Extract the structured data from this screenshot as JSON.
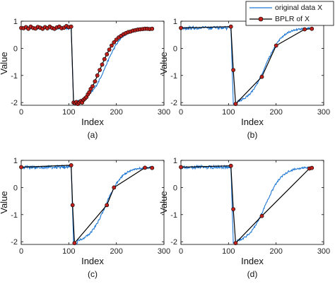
{
  "chart_data": [
    {
      "panel_caption": "(a)",
      "type": "line",
      "xlabel": "Index",
      "ylabel": "Value",
      "xlim": [
        0,
        300
      ],
      "ylim": [
        -2.1,
        1.0
      ],
      "xticks": [
        "0",
        "100",
        "200",
        "300"
      ],
      "yticks": [
        "-2",
        "-1",
        "0",
        "1"
      ],
      "series": [
        {
          "name": "original data X",
          "color": "#1f77d4",
          "points": "original"
        },
        {
          "name": "BPLR of X",
          "color": "#000000",
          "marker": "circle",
          "marker_fill": "#c0201c",
          "x": [
            0,
            5,
            10,
            15,
            20,
            25,
            30,
            35,
            40,
            45,
            50,
            55,
            60,
            65,
            70,
            75,
            80,
            85,
            90,
            95,
            100,
            105,
            110,
            113,
            116,
            119,
            122,
            125,
            128,
            131,
            134,
            137,
            140,
            143,
            146,
            150,
            155,
            160,
            165,
            170,
            175,
            180,
            185,
            190,
            195,
            200,
            205,
            210,
            215,
            220,
            225,
            230,
            235,
            240,
            245,
            250,
            255,
            260,
            265,
            270,
            275
          ],
          "y": [
            0.75,
            0.74,
            0.78,
            0.72,
            0.8,
            0.75,
            0.73,
            0.79,
            0.76,
            0.72,
            0.78,
            0.74,
            0.8,
            0.75,
            0.72,
            0.77,
            0.8,
            0.74,
            0.76,
            0.82,
            0.78,
            0.8,
            -2.0,
            -2.02,
            -1.98,
            -2.05,
            -2.0,
            -1.95,
            -2.0,
            -1.9,
            -1.85,
            -1.8,
            -1.7,
            -1.62,
            -1.5,
            -1.4,
            -1.22,
            -1.0,
            -0.8,
            -0.6,
            -0.4,
            -0.22,
            -0.05,
            0.1,
            0.22,
            0.32,
            0.4,
            0.46,
            0.52,
            0.56,
            0.6,
            0.62,
            0.65,
            0.67,
            0.69,
            0.7,
            0.71,
            0.72,
            0.72,
            0.71,
            0.72
          ]
        }
      ]
    },
    {
      "panel_caption": "(b)",
      "type": "line",
      "xlabel": "Index",
      "ylabel": "Value",
      "xlim": [
        0,
        300
      ],
      "ylim": [
        -2.1,
        1.0
      ],
      "xticks": [
        "0",
        "100",
        "200",
        "300"
      ],
      "yticks": [
        "-2",
        "-1",
        "0",
        "1"
      ],
      "series": [
        {
          "name": "original data X",
          "color": "#1f77d4",
          "points": "original"
        },
        {
          "name": "BPLR of X",
          "color": "#000000",
          "marker": "circle",
          "marker_fill": "#c0201c",
          "x": [
            0,
            105,
            110,
            115,
            170,
            200,
            260,
            275
          ],
          "y": [
            0.75,
            0.8,
            -0.8,
            -2.05,
            -1.05,
            0.1,
            0.7,
            0.72
          ]
        }
      ]
    },
    {
      "panel_caption": "(c)",
      "type": "line",
      "xlabel": "Index",
      "ylabel": "Value",
      "xlim": [
        0,
        300
      ],
      "ylim": [
        -2.1,
        1.0
      ],
      "xticks": [
        "0",
        "100",
        "200",
        "300"
      ],
      "yticks": [
        "-2",
        "-1",
        "0",
        "1"
      ],
      "series": [
        {
          "name": "original data X",
          "color": "#1f77d4",
          "points": "original"
        },
        {
          "name": "BPLR of X",
          "color": "#000000",
          "marker": "circle",
          "marker_fill": "#c0201c",
          "x": [
            0,
            105,
            108,
            112,
            180,
            195,
            260,
            275
          ],
          "y": [
            0.75,
            0.82,
            -0.65,
            -2.05,
            -0.65,
            0.0,
            0.73,
            0.72
          ]
        }
      ]
    },
    {
      "panel_caption": "(d)",
      "type": "line",
      "xlabel": "Index",
      "ylabel": "Value",
      "xlim": [
        0,
        300
      ],
      "ylim": [
        -2.1,
        1.0
      ],
      "xticks": [
        "0",
        "100",
        "200",
        "300"
      ],
      "yticks": [
        "-2",
        "-1",
        "0",
        "1"
      ],
      "series": [
        {
          "name": "original data X",
          "color": "#1f77d4",
          "points": "original"
        },
        {
          "name": "BPLR of X",
          "color": "#000000",
          "marker": "circle",
          "marker_fill": "#c0201c",
          "x": [
            0,
            105,
            110,
            115,
            170,
            270,
            275
          ],
          "y": [
            0.75,
            0.8,
            -0.8,
            -2.05,
            -1.05,
            0.7,
            0.72
          ]
        }
      ]
    }
  ],
  "legend": {
    "items": [
      "original data X",
      "BPLR of X"
    ],
    "placement": "top-right"
  }
}
